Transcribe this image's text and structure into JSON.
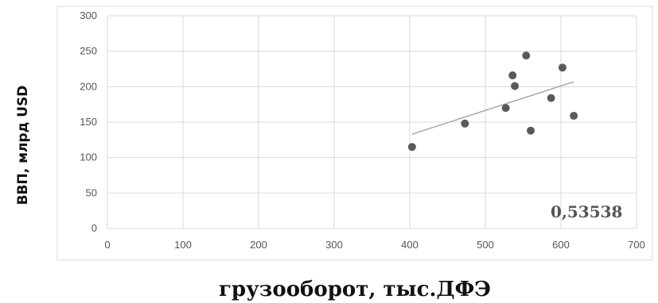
{
  "chart_data": {
    "type": "scatter",
    "title": "",
    "xlabel": "грузооборот, тыс.ДФЭ",
    "ylabel": "ВВП, млрд USD",
    "xlim": [
      0,
      700
    ],
    "ylim": [
      0,
      300
    ],
    "x_ticks": [
      0,
      100,
      200,
      300,
      400,
      500,
      600,
      700
    ],
    "y_ticks": [
      0,
      50,
      100,
      150,
      200,
      250,
      300
    ],
    "grid": true,
    "legend": "none",
    "series": [
      {
        "points": [
          {
            "x": 403,
            "y": 115
          },
          {
            "x": 473,
            "y": 148
          },
          {
            "x": 527,
            "y": 170
          },
          {
            "x": 536,
            "y": 216
          },
          {
            "x": 539,
            "y": 201
          },
          {
            "x": 554,
            "y": 244
          },
          {
            "x": 560,
            "y": 138
          },
          {
            "x": 587,
            "y": 184
          },
          {
            "x": 602,
            "y": 227
          },
          {
            "x": 617,
            "y": 159
          }
        ]
      }
    ],
    "trendline": {
      "x": [
        403,
        617
      ],
      "y": [
        133,
        207
      ]
    },
    "annotation": "0,53538",
    "colors": {
      "point": "#5a5a5a",
      "trendline": "#a6a6a6",
      "grid": "#d9d9d9",
      "frame": "#d9d9d9"
    }
  }
}
